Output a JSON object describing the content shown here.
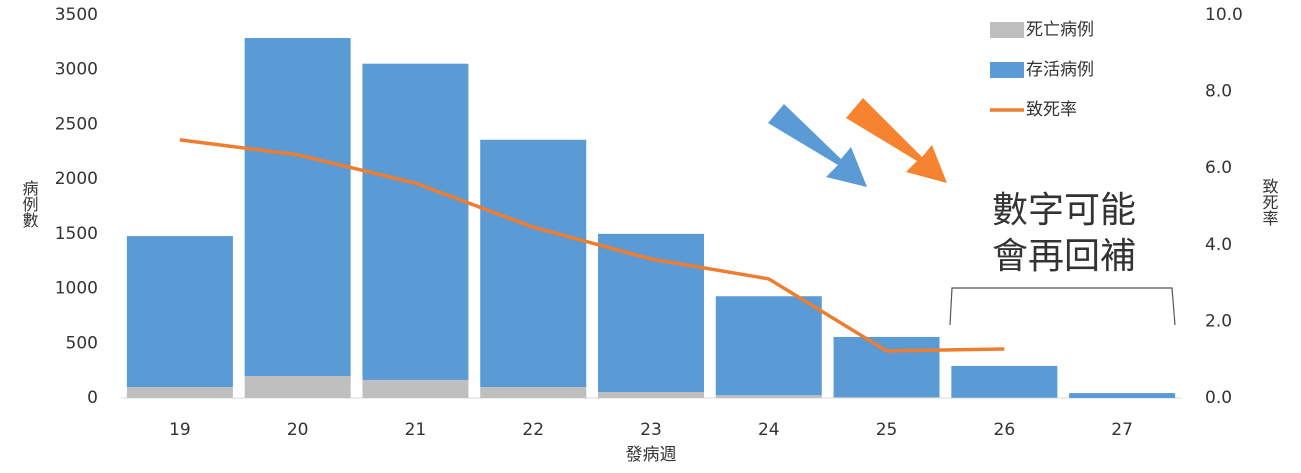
{
  "chart_data": {
    "type": "bar",
    "stacked": true,
    "categories": [
      "19",
      "20",
      "21",
      "22",
      "23",
      "24",
      "25",
      "26",
      "27"
    ],
    "series": [
      {
        "name": "死亡病例",
        "type": "bar",
        "color": "#bfbfbf",
        "values": [
          100,
          200,
          165,
          100,
          55,
          25,
          8,
          3,
          0
        ]
      },
      {
        "name": "存活病例",
        "type": "bar",
        "color": "#5b9bd5",
        "values": [
          1380,
          3090,
          2890,
          2260,
          1445,
          905,
          550,
          290,
          45
        ]
      },
      {
        "name": "致死率",
        "type": "line",
        "axis": "y2",
        "color": "#ed7d31",
        "values": [
          6.74,
          6.35,
          5.61,
          4.46,
          3.63,
          3.11,
          1.23,
          1.28,
          null
        ]
      }
    ],
    "ylim": [
      0,
      3500
    ],
    "yticks": [
      0,
      500,
      1000,
      1500,
      2000,
      2500,
      3000,
      3500
    ],
    "y2lim": [
      0,
      10
    ],
    "y2ticks": [
      {
        "value": 0,
        "label": "0.0"
      },
      {
        "value": 2,
        "label": "2.0"
      },
      {
        "value": 4,
        "label": "4.0"
      },
      {
        "value": 6,
        "label": "6.0"
      },
      {
        "value": 8,
        "label": "8.0"
      },
      {
        "value": 10,
        "label": "10.0"
      }
    ],
    "x_label": "發病週",
    "y_label": "病例數",
    "y2_label": "致死率",
    "annotation": [
      "數字可能",
      "會再回補"
    ],
    "legend": "top-right",
    "grid": false
  }
}
